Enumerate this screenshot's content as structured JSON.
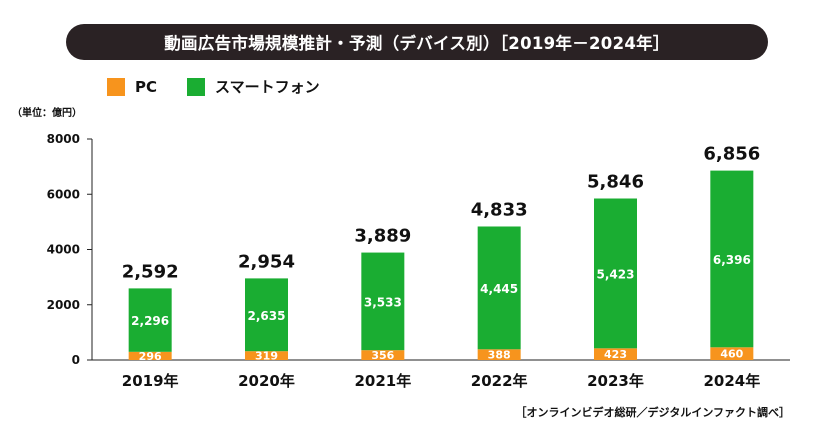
{
  "title": "動画広告市場規模推計・予測（デバイス別）［2019年－2024年］",
  "unit_label": "（単位：億円）",
  "source": "［オンラインビデオ総研／デジタルインファクト調べ］",
  "colors": {
    "pc": "#f7941d",
    "smartphone": "#1aad32",
    "title_bg": "#2a2224"
  },
  "chart_data": {
    "type": "bar",
    "stacked": true,
    "categories": [
      "2019年",
      "2020年",
      "2021年",
      "2022年",
      "2023年",
      "2024年"
    ],
    "series": [
      {
        "name": "PC",
        "values": [
          296,
          319,
          356,
          388,
          423,
          460
        ]
      },
      {
        "name": "スマートフォン",
        "values": [
          2296,
          2635,
          3533,
          4445,
          5423,
          6396
        ]
      }
    ],
    "totals": [
      2592,
      2954,
      3889,
      4833,
      5846,
      6856
    ],
    "segment_labels": {
      "pc": [
        "296",
        "319",
        "356",
        "388",
        "423",
        "460"
      ],
      "smartphone": [
        "2,296",
        "2,635",
        "3,533",
        "4,445",
        "5,423",
        "6,396"
      ]
    },
    "total_labels": [
      "2,592",
      "2,954",
      "3,889",
      "4,833",
      "5,846",
      "6,856"
    ],
    "y_ticks": [
      "0",
      "2000",
      "4000",
      "6000",
      "8000"
    ],
    "ylim": [
      0,
      8000
    ],
    "grid": false,
    "legend_position": "top-left"
  }
}
